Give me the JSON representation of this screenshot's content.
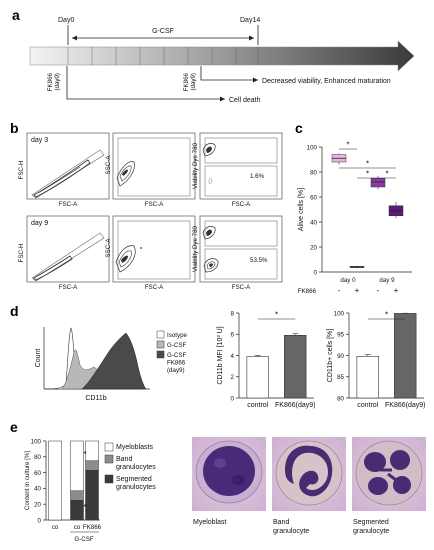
{
  "panels": {
    "a": "a",
    "b": "b",
    "c": "c",
    "d": "d",
    "e": "e"
  },
  "timeline": {
    "day0": "Day0",
    "gcsf": "G-CSF",
    "day14": "Day14",
    "fk866_day0": "FK866",
    "fk866_day0_sub": "(day0)",
    "fk866_day9": "FK866",
    "fk866_day9_sub": "(day9)",
    "effect_day9": "Decreased viability, Enhanced maturation",
    "effect_day0": "Cell death"
  },
  "flow": {
    "day3_label": "day 3",
    "day9_label": "day 9",
    "fsc_h": "FSC-H",
    "fsc_a": "FSC-A",
    "ssc_a": "SSC-A",
    "viability": "Viability Dye 780",
    "day3_pct": "1.6%",
    "day9_pct": "53.5%"
  },
  "chart_data": [
    {
      "panel": "c",
      "type": "box",
      "ylabel": "Alive cells [%]",
      "ylim": [
        0,
        100
      ],
      "yticks": [
        0,
        20,
        40,
        60,
        80,
        100
      ],
      "groups": [
        "day 0",
        "day 9"
      ],
      "fk866_row_label": "FK866",
      "fk866": [
        "-",
        "+",
        "-",
        "+"
      ],
      "boxes": [
        {
          "group": "day 0",
          "fk866": "-",
          "min": 86,
          "q1": 88,
          "median": 91,
          "q3": 94,
          "max": 95,
          "color": "#e8b6e6"
        },
        {
          "group": "day 0",
          "fk866": "+",
          "min": 3,
          "q1": 3.5,
          "median": 4,
          "q3": 4.5,
          "max": 5,
          "color": "#6a2a8a"
        },
        {
          "group": "day 9",
          "fk866": "-",
          "min": 66,
          "q1": 68,
          "median": 72,
          "q3": 75,
          "max": 77,
          "color": "#8a3aa6"
        },
        {
          "group": "day 9",
          "fk866": "+",
          "min": 43,
          "q1": 45,
          "median": 49,
          "q3": 53,
          "max": 56,
          "color": "#5a1a7a"
        }
      ],
      "significance": "*"
    },
    {
      "panel": "d-histogram",
      "type": "area",
      "xlabel": "CD11b",
      "ylabel": "Count",
      "legend": [
        "Isotype",
        "G-CSF",
        "G-CSF FK866 (day9)"
      ],
      "legend_lines": [
        [
          "Isotype"
        ],
        [
          "G-CSF"
        ],
        [
          "G-CSF",
          "FK866",
          "(day9)"
        ]
      ],
      "colors": [
        "#ffffff",
        "#b8b8b8",
        "#4a4a4a"
      ]
    },
    {
      "panel": "d-mfi",
      "type": "bar",
      "categories": [
        "control",
        "FK866(day9)"
      ],
      "values": [
        3.9,
        5.9
      ],
      "errors": [
        0.1,
        0.15
      ],
      "ylabel": "CD11b MFI [10³ U]",
      "ylim": [
        0,
        8
      ],
      "yticks": [
        0,
        2,
        4,
        6,
        8
      ],
      "colors": [
        "#ffffff",
        "#666666"
      ],
      "significance": "*"
    },
    {
      "panel": "d-pct",
      "type": "bar",
      "categories": [
        "control",
        "FK866(day9)"
      ],
      "values": [
        89.8,
        99.9
      ],
      "errors": [
        0.4,
        0.05
      ],
      "ylabel": "CD11b+ cells [%]",
      "ylim": [
        80,
        100
      ],
      "yticks": [
        80,
        85,
        90,
        95,
        100
      ],
      "colors": [
        "#ffffff",
        "#666666"
      ],
      "significance": "*"
    },
    {
      "panel": "e",
      "type": "bar",
      "stacked": true,
      "categories": [
        "co",
        "co",
        "FK866"
      ],
      "group_label": "G-CSF",
      "ylabel": "Content in culture [%]",
      "ylim": [
        0,
        100
      ],
      "yticks": [
        0,
        20,
        40,
        60,
        80,
        100
      ],
      "series": [
        {
          "name": "Segmented granulocytes",
          "values": [
            0,
            25,
            63
          ],
          "color": "#3a3a3a"
        },
        {
          "name": "Band granulocytes",
          "values": [
            0,
            12,
            12
          ],
          "color": "#8c8c8c"
        },
        {
          "name": "Myeloblasts",
          "values": [
            100,
            63,
            25
          ],
          "color": "#ffffff"
        }
      ],
      "legend_lines": [
        [
          "Myeloblasts"
        ],
        [
          "Band",
          "granulocytes"
        ],
        [
          "Segmented",
          "granulocytes"
        ]
      ],
      "significance": "*"
    }
  ],
  "micrographs": [
    {
      "lines": [
        "Myeloblast"
      ]
    },
    {
      "lines": [
        "Band",
        "granulocyte"
      ]
    },
    {
      "lines": [
        "Segmented",
        "granulocyte"
      ]
    }
  ]
}
